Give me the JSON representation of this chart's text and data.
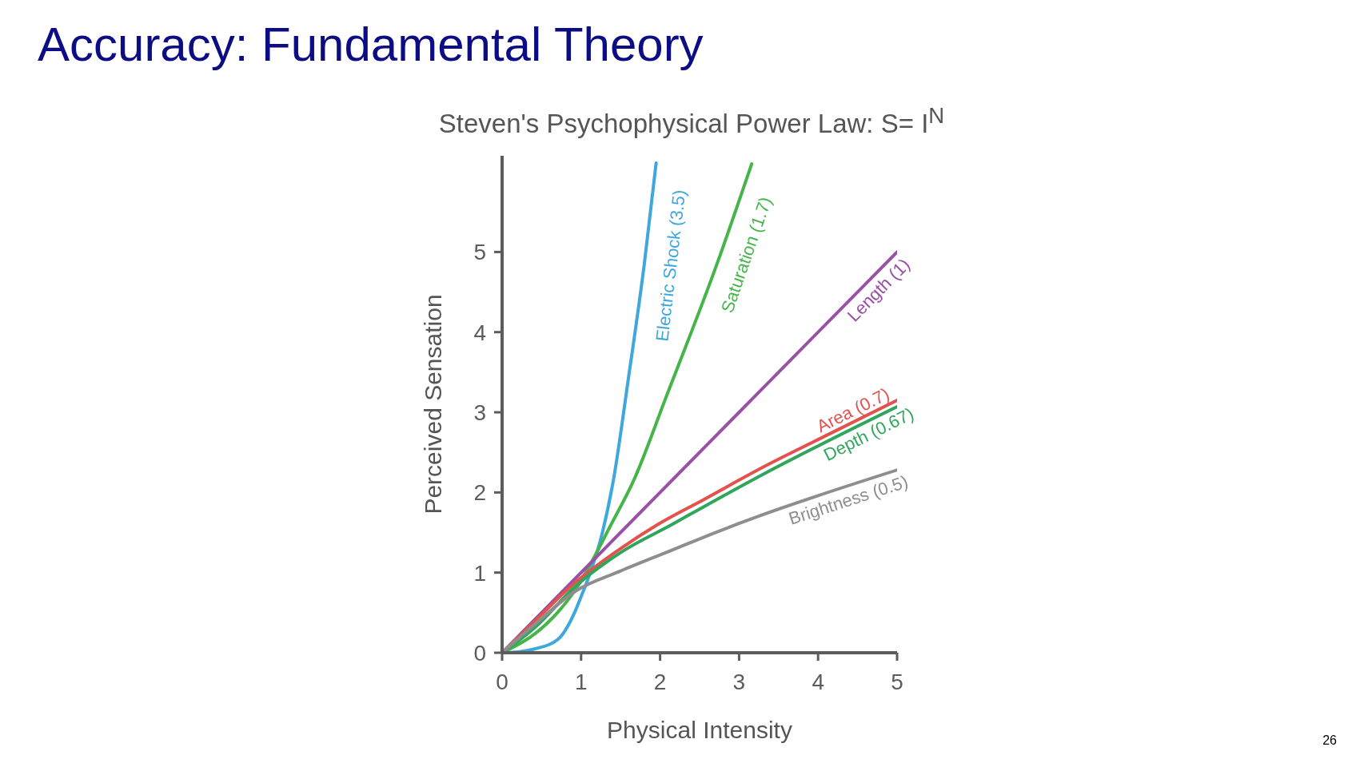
{
  "chart_data": {
    "type": "line",
    "title": "Accuracy: Fundamental Theory",
    "subtitle": "Steven's Psychophysical Power Law: S= I$^{N}$",
    "xlabel": "Physical Intensity",
    "ylabel": "Perceived Sensation",
    "annotations": [
      "26"
    ],
    "xlim": [
      0,
      5
    ],
    "xticks": [
      0,
      1,
      2,
      3,
      4,
      5
    ],
    "ylim": [
      0,
      6.2
    ],
    "yticks": [
      0,
      1,
      2,
      3,
      4,
      5
    ],
    "marker": "none",
    "line_style": "solid",
    "series": [
      {
        "name": "Electric Shock (3.5)",
        "color": "#3ea8dc",
        "x": [
          0,
          0.2,
          0.42,
          0.71,
          0.93,
          1.0,
          1.08,
          1.27,
          1.41,
          1.6,
          1.8,
          1.95
        ],
        "values": [
          0,
          0.01,
          0.05,
          0.17,
          0.53,
          0.7,
          0.9,
          1.5,
          2.16,
          3.43,
          4.85,
          6.11
        ]
      },
      {
        "name": "Saturation (1.7)",
        "color": "#45b549",
        "x": [
          0,
          0.42,
          0.7,
          0.93,
          1.03,
          1.38,
          1.67,
          2.08,
          2.72,
          3.16
        ],
        "values": [
          0,
          0.24,
          0.5,
          0.79,
          0.95,
          1.6,
          2.16,
          3.2,
          4.85,
          6.1
        ]
      },
      {
        "name": "Length (1)",
        "color": "#9a50a5",
        "x": [
          0,
          5
        ],
        "values": [
          0,
          5
        ]
      },
      {
        "name": "Area (0.7)",
        "color": "#e3524c",
        "x": [
          0,
          0.42,
          0.93,
          1.5,
          1.97,
          2.55,
          3.35,
          4,
          5
        ],
        "values": [
          0,
          0.4,
          0.88,
          1.3,
          1.6,
          1.91,
          2.34,
          2.66,
          3.15
        ]
      },
      {
        "name": "Depth (0.67)",
        "color": "#2fa65c",
        "x": [
          0,
          0.42,
          0.93,
          1.5,
          2.15,
          2.55,
          3.35,
          4,
          5
        ],
        "values": [
          0,
          0.32,
          0.83,
          1.25,
          1.6,
          1.82,
          2.25,
          2.58,
          3.07
        ]
      },
      {
        "name": "Brightness (0.5)",
        "color": "#8e8e8e",
        "x": [
          0,
          0.42,
          0.93,
          1.5,
          2.15,
          2.7,
          3.35,
          4,
          5
        ],
        "values": [
          0,
          0.36,
          0.77,
          1.02,
          1.28,
          1.5,
          1.74,
          1.96,
          2.28
        ]
      }
    ]
  }
}
